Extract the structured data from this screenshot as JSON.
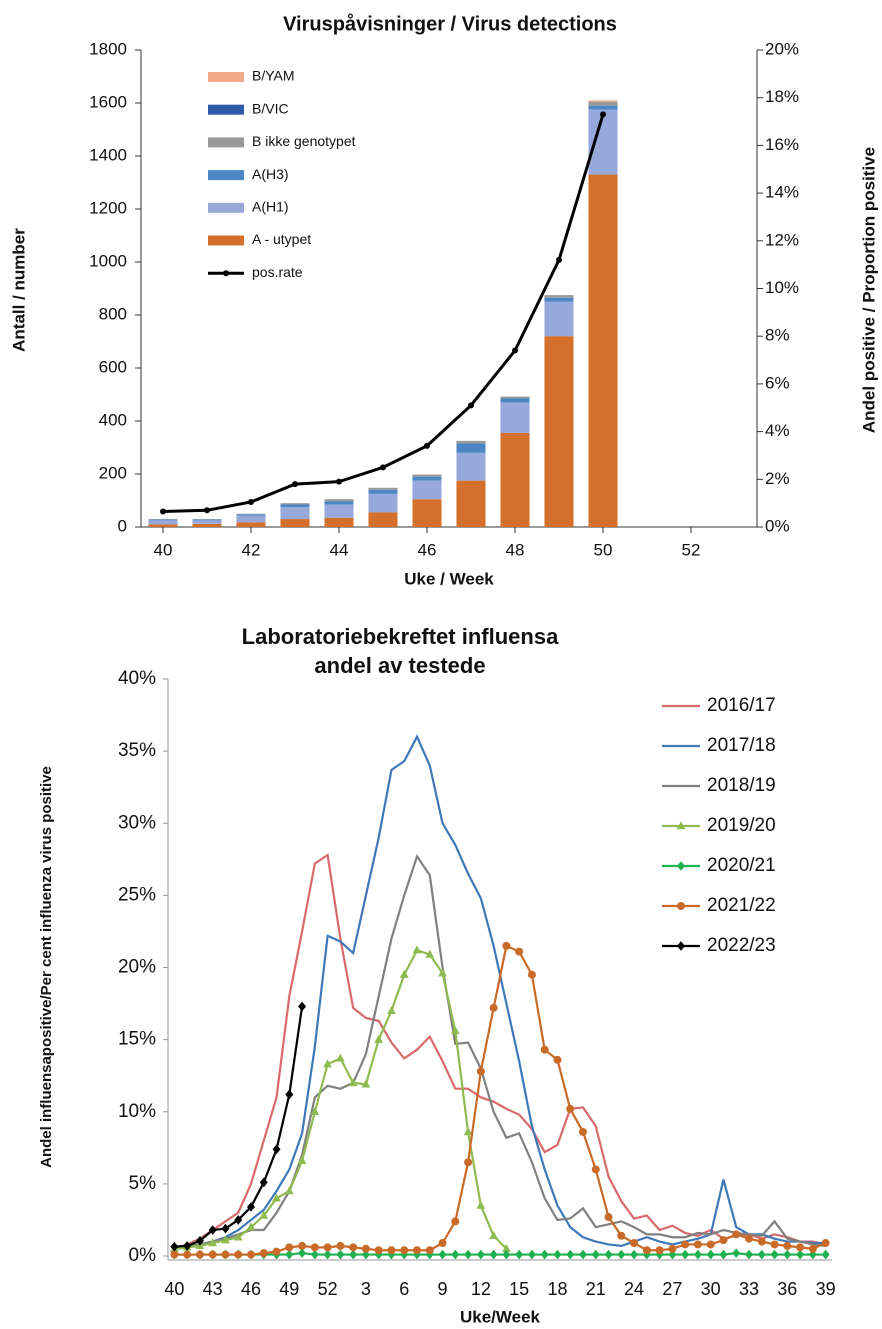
{
  "chart_data": [
    {
      "type": "bar",
      "stacked": true,
      "title": "Viruspåvisninger / Virus detections",
      "xlabel": "Uke / Week",
      "ylabel": "Antall / number",
      "y2label": "Andel positive / Proportion positive",
      "x": [
        40,
        41,
        42,
        43,
        44,
        45,
        46,
        47,
        48,
        49,
        50
      ],
      "xlim": [
        39.5,
        53.5
      ],
      "xticks": [
        40,
        42,
        44,
        46,
        48,
        50,
        52
      ],
      "ylim": [
        0,
        1800
      ],
      "yticks": [
        0,
        200,
        400,
        600,
        800,
        1000,
        1200,
        1400,
        1600,
        1800
      ],
      "y2lim": [
        0,
        20
      ],
      "y2ticks": [
        {
          "value": 0,
          "label": "0%"
        },
        {
          "value": 2,
          "label": "2%"
        },
        {
          "value": 4,
          "label": "4%"
        },
        {
          "value": 6,
          "label": "6%"
        },
        {
          "value": 8,
          "label": "8%"
        },
        {
          "value": 10,
          "label": "10%"
        },
        {
          "value": 12,
          "label": "12%"
        },
        {
          "value": 14,
          "label": "14%"
        },
        {
          "value": 16,
          "label": "16%"
        },
        {
          "value": 18,
          "label": "18%"
        },
        {
          "value": 20,
          "label": "20%"
        }
      ],
      "legend": "upper left",
      "series": [
        {
          "name": "A - utypet",
          "color": "#d4702c",
          "values": [
            10,
            12,
            18,
            30,
            35,
            55,
            105,
            175,
            355,
            720,
            1330
          ]
        },
        {
          "name": "A(H1)",
          "color": "#97a9da",
          "values": [
            15,
            13,
            25,
            45,
            50,
            70,
            70,
            105,
            115,
            130,
            245
          ]
        },
        {
          "name": "A(H3)",
          "color": "#4a87c4",
          "values": [
            3,
            3,
            5,
            10,
            12,
            15,
            15,
            35,
            15,
            15,
            15
          ]
        },
        {
          "name": "B ikke genotypet",
          "color": "#999999",
          "values": [
            2,
            2,
            2,
            5,
            8,
            8,
            8,
            10,
            7,
            10,
            15
          ]
        },
        {
          "name": "B/VIC",
          "color": "#2e5aa8",
          "values": [
            0,
            0,
            0,
            0,
            0,
            0,
            0,
            0,
            0,
            0,
            0
          ]
        },
        {
          "name": "B/YAM",
          "color": "#f2a98a",
          "values": [
            0,
            0,
            0,
            0,
            0,
            0,
            0,
            0,
            0,
            0,
            5
          ]
        },
        {
          "name": "pos.rate",
          "color": "#000000",
          "type": "line",
          "axis": "y2",
          "values": [
            0.65,
            0.7,
            1.05,
            1.8,
            1.9,
            2.5,
            3.4,
            5.1,
            7.4,
            11.2,
            17.3
          ]
        }
      ]
    },
    {
      "type": "line",
      "title": [
        "Laboratoriebekreftet influensa",
        "andel av testede"
      ],
      "xlabel": "Uke/Week",
      "ylabel": "Andel influensapositive/Per cent influenza virus positive",
      "categories": [
        "40",
        null,
        null,
        "43",
        null,
        null,
        "46",
        null,
        null,
        "49",
        null,
        null,
        "52",
        null,
        null,
        "3",
        null,
        null,
        "6",
        null,
        null,
        "9",
        null,
        null,
        "12",
        null,
        null,
        "15",
        null,
        null,
        "18",
        null,
        null,
        "21",
        null,
        null,
        "24",
        null,
        null,
        "27",
        null,
        null,
        "30",
        null,
        null,
        "33",
        null,
        null,
        "36",
        null,
        null,
        "39"
      ],
      "ylim": [
        0,
        40
      ],
      "yticks": [
        {
          "value": 0,
          "label": "0%"
        },
        {
          "value": 5,
          "label": "5%"
        },
        {
          "value": 10,
          "label": "10%"
        },
        {
          "value": 15,
          "label": "15%"
        },
        {
          "value": 20,
          "label": "20%"
        },
        {
          "value": 25,
          "label": "25%"
        },
        {
          "value": 30,
          "label": "30%"
        },
        {
          "value": 35,
          "label": "35%"
        },
        {
          "value": 40,
          "label": "40%"
        }
      ],
      "legend": "upper right",
      "series": [
        {
          "name": "2016/17",
          "color": "#d9696a",
          "marker": "none",
          "values": [
            0.5,
            0.8,
            1.2,
            1.8,
            2.4,
            3.0,
            5.0,
            8.0,
            11.0,
            18.0,
            22.5,
            27.2,
            27.8,
            22.0,
            17.2,
            16.5,
            16.3,
            14.8,
            13.7,
            14.3,
            15.2,
            13.5,
            11.6,
            11.6,
            11.0,
            10.7,
            10.2,
            9.8,
            8.8,
            7.2,
            7.7,
            10.2,
            10.3,
            9.0,
            5.5,
            3.8,
            2.6,
            2.8,
            1.8,
            2.1,
            1.6,
            1.4,
            1.8,
            1.2,
            1.4,
            1.5,
            1.2,
            1.5,
            1.3,
            1.0,
            1.0,
            0.8
          ]
        },
        {
          "name": "2017/18",
          "color": "#3f78b8",
          "marker": "none",
          "values": [
            0.5,
            0.6,
            0.8,
            1.0,
            1.3,
            1.8,
            2.5,
            3.2,
            4.5,
            6.0,
            8.5,
            14.5,
            22.2,
            21.8,
            21.0,
            25.0,
            29.0,
            33.7,
            34.3,
            36.0,
            34.0,
            30.0,
            28.5,
            26.5,
            24.8,
            21.5,
            17.5,
            13.5,
            9.0,
            6.0,
            3.5,
            2.0,
            1.3,
            1.0,
            0.8,
            0.7,
            1.0,
            1.3,
            1.0,
            0.8,
            1.0,
            1.2,
            1.5,
            5.3,
            2.0,
            1.5,
            1.5,
            1.2,
            1.0,
            1.0,
            0.9,
            0.9
          ]
        },
        {
          "name": "2018/19",
          "color": "#808080",
          "marker": "none",
          "values": [
            0.6,
            0.7,
            0.8,
            1.0,
            1.2,
            1.5,
            1.8,
            1.8,
            3.0,
            4.5,
            7.0,
            11.0,
            11.8,
            11.6,
            12.0,
            14.0,
            18.0,
            22.0,
            25.0,
            27.7,
            26.4,
            20.0,
            14.7,
            14.8,
            13.0,
            10.0,
            8.2,
            8.5,
            6.5,
            4.0,
            2.5,
            2.6,
            3.3,
            2.0,
            2.2,
            2.4,
            2.0,
            1.5,
            1.5,
            1.3,
            1.3,
            1.6,
            1.5,
            1.8,
            1.6,
            1.5,
            1.4,
            2.4,
            1.2,
            1.0,
            0.8,
            0.7
          ]
        },
        {
          "name": "2019/20",
          "color": "#8dbb4f",
          "marker": "triangle",
          "values": [
            0.5,
            0.6,
            0.7,
            0.9,
            1.1,
            1.3,
            2.0,
            2.8,
            4.0,
            4.5,
            6.6,
            10.0,
            13.3,
            13.7,
            12.0,
            11.9,
            15.0,
            17.0,
            19.5,
            21.2,
            20.9,
            19.6,
            15.6,
            8.6,
            3.5,
            1.4,
            0.5,
            null,
            null,
            null,
            null,
            null,
            null,
            null,
            null,
            null,
            null,
            null,
            null,
            null,
            null,
            null,
            null,
            null,
            null,
            null,
            null,
            null,
            null,
            null,
            null,
            null
          ]
        },
        {
          "name": "2020/21",
          "color": "#1fb14f",
          "marker": "diamond",
          "values": [
            0.1,
            0.1,
            0.1,
            0.1,
            0.1,
            0.1,
            0.1,
            0.1,
            0.1,
            0.1,
            0.2,
            0.1,
            0.1,
            0.1,
            0.1,
            0.1,
            0.1,
            0.1,
            0.1,
            0.1,
            0.1,
            0.1,
            0.1,
            0.1,
            0.1,
            0.1,
            0.1,
            0.1,
            0.1,
            0.1,
            0.1,
            0.1,
            0.1,
            0.1,
            0.1,
            0.1,
            0.1,
            0.1,
            0.1,
            0.1,
            0.1,
            0.1,
            0.1,
            0.1,
            0.2,
            0.1,
            0.1,
            0.1,
            0.1,
            0.1,
            0.1,
            0.1
          ]
        },
        {
          "name": "2021/22",
          "color": "#c96a28",
          "marker": "circle",
          "values": [
            0.1,
            0.1,
            0.1,
            0.1,
            0.1,
            0.1,
            0.1,
            0.2,
            0.3,
            0.6,
            0.7,
            0.6,
            0.6,
            0.7,
            0.6,
            0.5,
            0.4,
            0.4,
            0.4,
            0.4,
            0.4,
            0.9,
            2.4,
            6.5,
            12.8,
            17.2,
            21.5,
            21.1,
            19.5,
            14.3,
            13.6,
            10.2,
            8.6,
            6.0,
            2.7,
            1.4,
            0.9,
            0.4,
            0.4,
            0.5,
            0.8,
            0.8,
            0.8,
            1.1,
            1.5,
            1.2,
            1.0,
            0.8,
            0.7,
            0.6,
            0.5,
            0.9
          ]
        },
        {
          "name": "2022/23",
          "color": "#000000",
          "marker": "diamond",
          "values": [
            0.65,
            0.7,
            1.05,
            1.8,
            1.9,
            2.5,
            3.4,
            5.1,
            7.4,
            11.2,
            17.3,
            null,
            null,
            null,
            null,
            null,
            null,
            null,
            null,
            null,
            null,
            null,
            null,
            null,
            null,
            null,
            null,
            null,
            null,
            null,
            null,
            null,
            null,
            null,
            null,
            null,
            null,
            null,
            null,
            null,
            null,
            null,
            null,
            null,
            null,
            null,
            null,
            null,
            null,
            null,
            null,
            null
          ]
        }
      ]
    }
  ]
}
